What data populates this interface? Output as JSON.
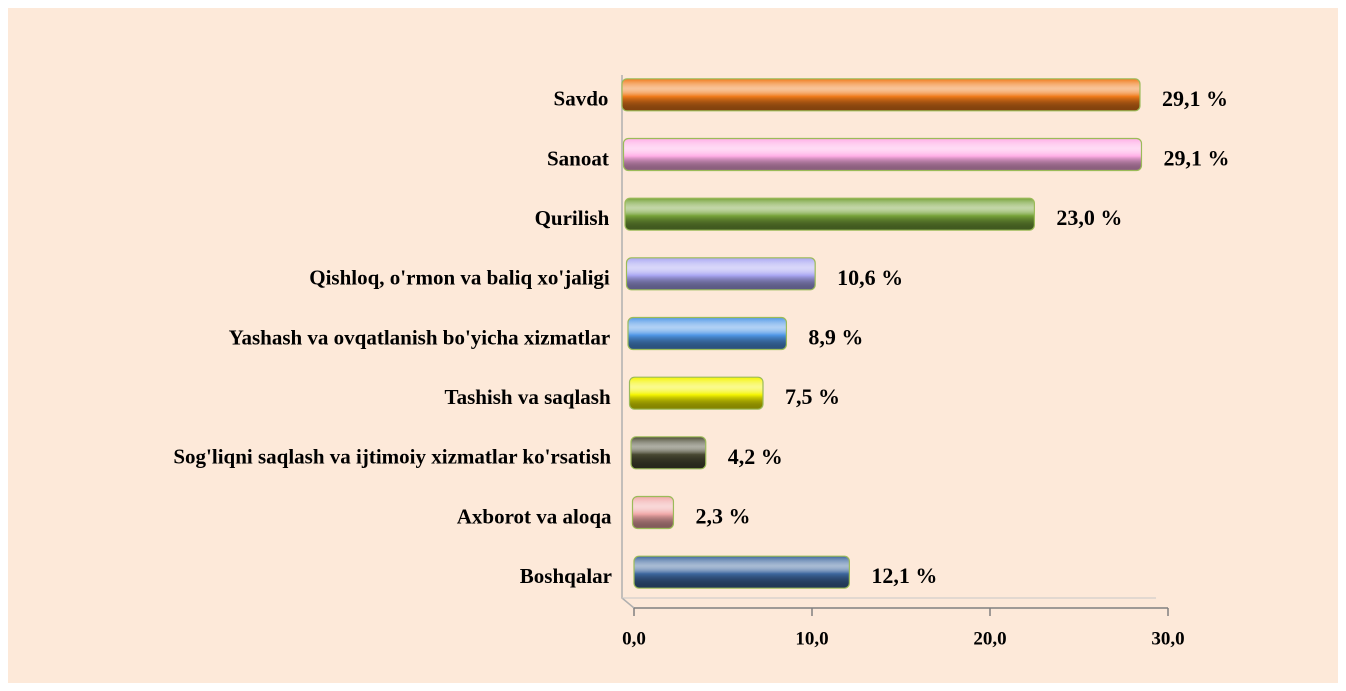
{
  "chart_data": {
    "type": "bar",
    "orientation": "horizontal",
    "categories": [
      "Savdo",
      "Sanoat",
      "Qurilish",
      "Qishloq, o'rmon va baliq xo'jaligi",
      "Yashash va ovqatlanish bo'yicha xizmatlar",
      "Tashish va saqlash",
      "Sog'liqni saqlash va ijtimoiy xizmatlar ko'rsatish",
      "Axborot va aloqa",
      "Boshqalar"
    ],
    "values": [
      29.1,
      29.1,
      23.0,
      10.6,
      8.9,
      7.5,
      4.2,
      2.3,
      12.1
    ],
    "value_labels": [
      "29,1 %",
      "29,1 %",
      "23,0 %",
      "10,6 %",
      "8,9 %",
      "7,5 %",
      "4,2 %",
      "2,3 %",
      "12,1 %"
    ],
    "colors": [
      "#f07a1a",
      "#ffaee6",
      "#77a33a",
      "#a9a6f2",
      "#4f97e6",
      "#f4f400",
      "#4a4a33",
      "#f0a8a8",
      "#3d679e"
    ],
    "xlim": [
      0,
      30
    ],
    "xticks": [
      {
        "value": 0,
        "label": "0,0"
      },
      {
        "value": 10,
        "label": "10,0"
      },
      {
        "value": 20,
        "label": "20,0"
      },
      {
        "value": 30,
        "label": "30,0"
      }
    ]
  }
}
